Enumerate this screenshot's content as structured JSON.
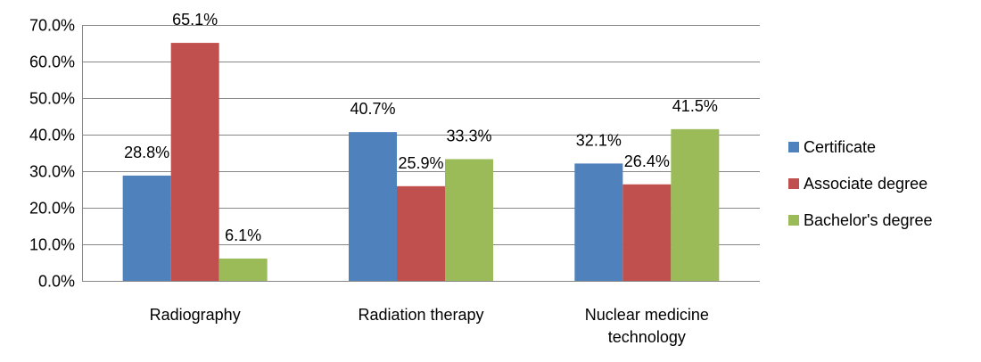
{
  "chart_data": {
    "type": "bar",
    "categories": [
      [
        "Radiography"
      ],
      [
        "Radiation therapy"
      ],
      [
        "Nuclear medicine",
        "technology"
      ]
    ],
    "series": [
      {
        "name": "Certificate",
        "values": [
          28.8,
          40.7,
          32.1
        ],
        "labels": [
          "28.8%",
          "40.7%",
          "32.1%"
        ],
        "color": "#4f81bd"
      },
      {
        "name": "Associate degree",
        "values": [
          65.1,
          25.9,
          26.4
        ],
        "labels": [
          "65.1%",
          "25.9%",
          "26.4%"
        ],
        "color": "#c0504d"
      },
      {
        "name": "Bachelor's degree",
        "values": [
          6.1,
          33.3,
          41.5
        ],
        "labels": [
          "6.1%",
          "33.3%",
          "41.5%"
        ],
        "color": "#9bbb59"
      }
    ],
    "ylim": [
      0,
      70
    ],
    "yticks": [
      0,
      10,
      20,
      30,
      40,
      50,
      60,
      70
    ],
    "ytick_labels": [
      "0.0%",
      "10.0%",
      "20.0%",
      "30.0%",
      "40.0%",
      "50.0%",
      "60.0%",
      "70.0%"
    ],
    "grid": true,
    "legend_position": "right",
    "gridline_color": "#878787"
  }
}
